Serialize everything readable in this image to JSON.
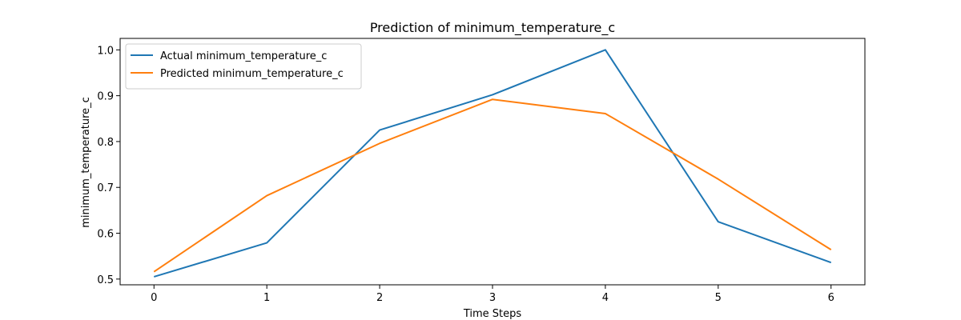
{
  "chart_data": {
    "type": "line",
    "title": "Prediction of minimum_temperature_c",
    "xlabel": "Time Steps",
    "ylabel": "minimum_temperature_c",
    "x": [
      0,
      1,
      2,
      3,
      4,
      5,
      6
    ],
    "x_ticks": [
      "0",
      "1",
      "2",
      "3",
      "4",
      "5",
      "6"
    ],
    "y_ticks": [
      "0.5",
      "0.6",
      "0.7",
      "0.8",
      "0.9",
      "1.0"
    ],
    "xlim": [
      -0.3,
      6.3
    ],
    "ylim": [
      0.4875,
      1.025
    ],
    "grid": false,
    "legend_position": "upper-left",
    "series": [
      {
        "name": "Actual minimum_temperature_c",
        "color": "#1f77b4",
        "values": [
          0.505,
          0.579,
          0.825,
          0.902,
          1.0,
          0.625,
          0.536
        ]
      },
      {
        "name": "Predicted minimum_temperature_c",
        "color": "#ff7f0e",
        "values": [
          0.516,
          0.682,
          0.796,
          0.892,
          0.861,
          0.718,
          0.564
        ]
      }
    ]
  }
}
